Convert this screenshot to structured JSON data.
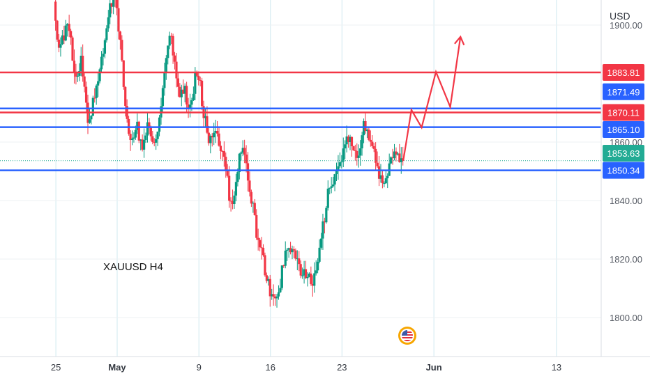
{
  "chart_data": {
    "type": "candlestick",
    "annotation": "XAUUSD H4",
    "currency": "USD",
    "y_ticks": [
      "1900.00",
      "1860.00",
      "1840.00",
      "1820.00",
      "1800.00"
    ],
    "x_ticks": [
      {
        "label": "25",
        "day": -6
      },
      {
        "label": "May",
        "day": 0
      },
      {
        "label": "9",
        "day": 8
      },
      {
        "label": "16",
        "day": 15
      },
      {
        "label": "23",
        "day": 22
      },
      {
        "label": "Jun",
        "day": 31
      },
      {
        "label": "13",
        "day": 43
      }
    ],
    "levels": [
      {
        "price": 1883.81,
        "label": "1883.81",
        "color": "#f23645"
      },
      {
        "price": 1871.49,
        "label": "1871.49",
        "color": "#2962ff"
      },
      {
        "price": 1870.11,
        "label": "1870.11",
        "color": "#f23645"
      },
      {
        "price": 1865.1,
        "label": "1865.10",
        "color": "#2962ff"
      },
      {
        "price": 1850.34,
        "label": "1850.34",
        "color": "#2962ff"
      }
    ],
    "current_price": {
      "price": 1853.63,
      "label": "1853.63",
      "color": "#22ab94"
    },
    "up_color": "#089981",
    "down_color": "#f23645",
    "grid": true,
    "projection": {
      "color": "#f23645",
      "points": [
        [
          28.0,
          1853.6
        ],
        [
          28.8,
          1871
        ],
        [
          29.8,
          1865
        ],
        [
          31.2,
          1884
        ],
        [
          32.6,
          1872
        ],
        [
          33.6,
          1896
        ]
      ]
    },
    "candle_path": [
      [
        -6.2,
        1908
      ],
      [
        -5.8,
        1890
      ],
      [
        -4.8,
        1902
      ],
      [
        -4.0,
        1880
      ],
      [
        -3.5,
        1888
      ],
      [
        -2.8,
        1866
      ],
      [
        -2.0,
        1880
      ],
      [
        -1.3,
        1893
      ],
      [
        -0.7,
        1906
      ],
      [
        -0.3,
        1910
      ],
      [
        0.3,
        1896
      ],
      [
        0.8,
        1872
      ],
      [
        1.3,
        1860
      ],
      [
        1.9,
        1866
      ],
      [
        2.4,
        1858
      ],
      [
        3.0,
        1868
      ],
      [
        3.5,
        1861
      ],
      [
        4.1,
        1866
      ],
      [
        4.6,
        1883
      ],
      [
        5.1,
        1897
      ],
      [
        5.6,
        1890
      ],
      [
        6.1,
        1874
      ],
      [
        6.6,
        1878
      ],
      [
        7.1,
        1870
      ],
      [
        7.6,
        1882
      ],
      [
        8.1,
        1880
      ],
      [
        8.6,
        1867
      ],
      [
        9.1,
        1860
      ],
      [
        9.6,
        1864
      ],
      [
        10.1,
        1858
      ],
      [
        10.6,
        1853
      ],
      [
        11.1,
        1838
      ],
      [
        11.6,
        1843
      ],
      [
        12.1,
        1858
      ],
      [
        12.6,
        1854
      ],
      [
        13.1,
        1842
      ],
      [
        13.6,
        1830
      ],
      [
        14.1,
        1825
      ],
      [
        14.6,
        1814
      ],
      [
        15.1,
        1806
      ],
      [
        15.6,
        1805
      ],
      [
        16.1,
        1815
      ],
      [
        16.6,
        1824
      ],
      [
        17.1,
        1825
      ],
      [
        17.6,
        1819
      ],
      [
        18.1,
        1813
      ],
      [
        18.6,
        1816
      ],
      [
        19.1,
        1812
      ],
      [
        19.6,
        1817
      ],
      [
        20.1,
        1830
      ],
      [
        20.6,
        1842
      ],
      [
        21.1,
        1845
      ],
      [
        21.6,
        1850
      ],
      [
        22.1,
        1856
      ],
      [
        22.6,
        1862
      ],
      [
        23.1,
        1856
      ],
      [
        23.6,
        1853
      ],
      [
        24.1,
        1867
      ],
      [
        24.6,
        1862
      ],
      [
        25.1,
        1856
      ],
      [
        25.6,
        1850
      ],
      [
        26.1,
        1846
      ],
      [
        26.6,
        1850
      ],
      [
        27.1,
        1858
      ],
      [
        27.6,
        1855
      ],
      [
        28.0,
        1853.6
      ]
    ]
  },
  "events": {
    "flag_icon": "us-flag-event-icon"
  }
}
